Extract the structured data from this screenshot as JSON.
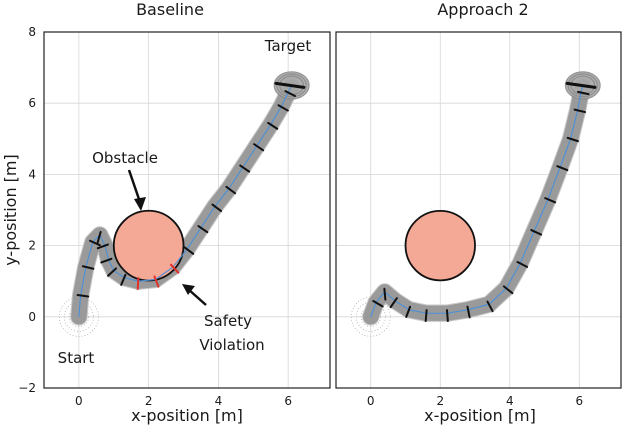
{
  "chart_data": [
    {
      "type": "line",
      "title": "Baseline",
      "xlabel": "x-position [m]",
      "ylabel": "y-position [m]",
      "xlim": [
        -1,
        7.2
      ],
      "ylim": [
        -2,
        8
      ],
      "xticks": [
        0,
        2,
        4,
        6
      ],
      "yticks": [
        -2,
        0,
        2,
        4,
        6,
        8
      ],
      "grid": true,
      "obstacle": {
        "center": [
          2,
          2
        ],
        "radius": 1,
        "color": "#f4a896"
      },
      "annotations": {
        "obstacle": "Obstacle",
        "target": "Target",
        "start": "Start",
        "violation_line1": "Safety",
        "violation_line2": "Violation"
      },
      "path": {
        "x": [
          0,
          0.05,
          0.2,
          0.4,
          0.6,
          0.75,
          0.85,
          1.0,
          1.3,
          1.7,
          2.2,
          2.7,
          3.1,
          3.5,
          3.9,
          4.3,
          4.7,
          5.1,
          5.5,
          5.8,
          6.0,
          6.1
        ],
        "y": [
          0,
          0.6,
          1.4,
          2.1,
          2.3,
          2.0,
          1.6,
          1.3,
          1.1,
          1.0,
          1.05,
          1.4,
          1.9,
          2.5,
          3.1,
          3.6,
          4.2,
          4.8,
          5.4,
          5.9,
          6.3,
          6.5
        ]
      },
      "unsafe_segment_x": [
        1.5,
        3.0
      ]
    },
    {
      "type": "line",
      "title": "Approach 2",
      "xlabel": "x-position [m]",
      "ylabel": "",
      "xlim": [
        -1,
        7.2
      ],
      "ylim": [
        -2,
        8
      ],
      "xticks": [
        0,
        2,
        4,
        6
      ],
      "yticks": [
        -2,
        0,
        2,
        4,
        6,
        8
      ],
      "grid": true,
      "obstacle": {
        "center": [
          2,
          2
        ],
        "radius": 1,
        "color": "#f4a896"
      },
      "path": {
        "x": [
          0,
          0.15,
          0.4,
          0.7,
          1.1,
          1.6,
          2.2,
          2.8,
          3.4,
          3.9,
          4.3,
          4.7,
          5.1,
          5.45,
          5.75,
          5.95,
          6.05,
          6.1
        ],
        "y": [
          0,
          0.4,
          0.7,
          0.45,
          0.2,
          0.1,
          0.1,
          0.2,
          0.35,
          0.8,
          1.5,
          2.4,
          3.3,
          4.2,
          5.0,
          5.8,
          6.3,
          6.5
        ]
      },
      "unsafe_segment_x": []
    }
  ],
  "colors": {
    "tube": "#8a8a8a",
    "path": "#4a90d9",
    "footprint": "#111111",
    "unsafe": "#e0302a",
    "frame": "#222222"
  }
}
